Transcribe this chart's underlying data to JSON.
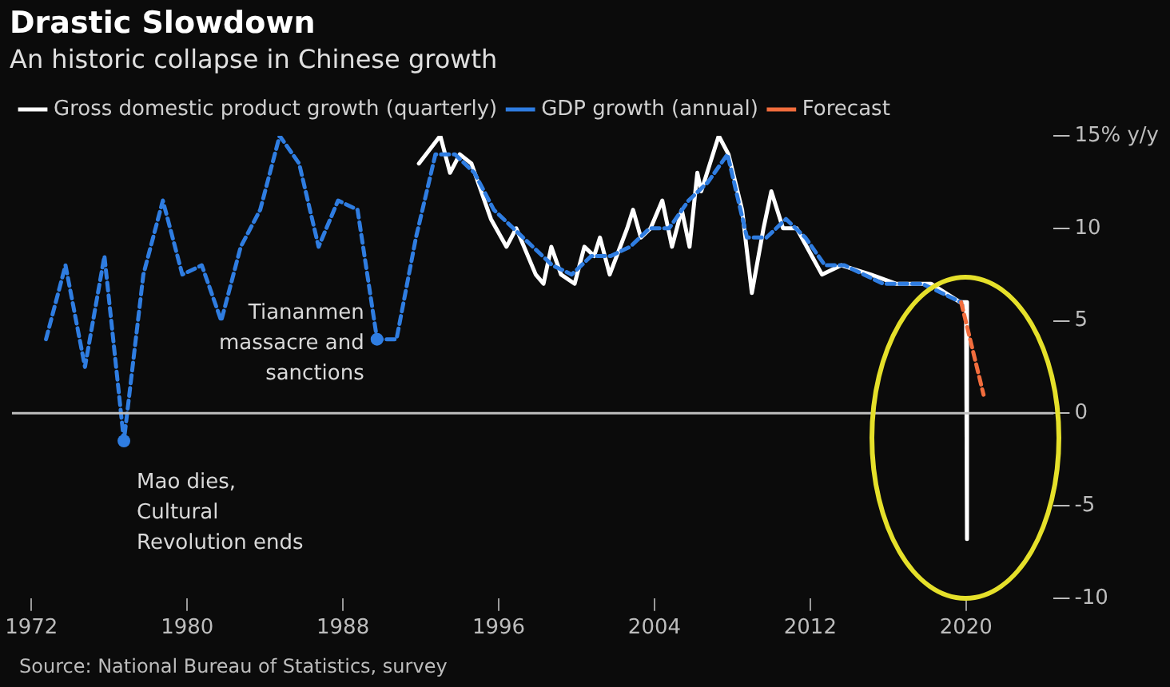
{
  "chart_data": {
    "type": "line",
    "title": "Drastic Slowdown",
    "subtitle": "An historic collapse in Chinese growth",
    "series": [
      {
        "name": "Gross domestic product growth (quarterly)",
        "color": "#ffffff",
        "line_style": "solid",
        "x": [
          1991.9,
          1993,
          1993.5,
          1994,
          1994.6,
          1995.6,
          1996.4,
          1996.9,
          1997.9,
          1998.3,
          1998.7,
          1999.2,
          1999.9,
          2000.4,
          2000.9,
          2001.2,
          2001.7,
          2002.6,
          2002.9,
          2003.3,
          2003.8,
          2004.4,
          2004.9,
          2005.4,
          2005.8,
          2006.2,
          2006.4,
          2007.3,
          2007.8,
          2008.5,
          2009,
          2009.6,
          2010,
          2010.6,
          2011.3,
          2012.6,
          2013.6,
          2015.1,
          2016.4,
          2018.2,
          2019.7,
          2020,
          2020.05
        ],
        "values": [
          13.5,
          15,
          13,
          14,
          13.5,
          10.5,
          9,
          10,
          7.5,
          7,
          9,
          7.5,
          7,
          9,
          8.5,
          9.5,
          7.5,
          10,
          11,
          9.5,
          10,
          11.5,
          9,
          11,
          9,
          13,
          12,
          15,
          14,
          11,
          6.5,
          10,
          12,
          10,
          10,
          7.5,
          8,
          7.5,
          7,
          7,
          6,
          6,
          -6.8
        ]
      },
      {
        "name": "GDP growth (annual)",
        "color": "#2f7de1",
        "line_style": "dashed",
        "x": [
          1972.75,
          1973.75,
          1974.75,
          1975.75,
          1976.75,
          1977.75,
          1978.75,
          1979.75,
          1980.75,
          1981.75,
          1982.75,
          1983.75,
          1984.75,
          1985.75,
          1986.75,
          1987.75,
          1988.75,
          1989.75,
          1990.75,
          1991.75,
          1992.75,
          1993.75,
          1994.75,
          1995.75,
          1996.75,
          1997.75,
          1998.75,
          1999.75,
          2000.75,
          2001.75,
          2002.75,
          2003.75,
          2004.75,
          2005.75,
          2006.75,
          2007.75,
          2008.75,
          2009.75,
          2010.75,
          2011.75,
          2012.75,
          2013.75,
          2014.75,
          2015.75,
          2016.75,
          2017.75,
          2018.75,
          2019.75
        ],
        "values": [
          4,
          8,
          2.5,
          8.5,
          -1.5,
          7.5,
          11.5,
          7.5,
          8,
          5,
          9,
          11,
          15,
          13.5,
          9,
          11.5,
          11,
          4,
          4,
          9.5,
          14,
          14,
          13,
          11,
          10,
          9,
          8,
          7.5,
          8.5,
          8.5,
          9,
          10,
          10,
          11.5,
          12.5,
          14,
          9.5,
          9.5,
          10.5,
          9.5,
          8,
          8,
          7.5,
          7,
          7,
          7,
          6.5,
          6
        ]
      },
      {
        "name": "Forecast",
        "color": "#f26d3d",
        "line_style": "dashed",
        "x": [
          2019.75,
          2020.9
        ],
        "values": [
          6,
          1
        ]
      }
    ],
    "xlim": [
      1971,
      2024.5
    ],
    "xticks": [
      1972,
      1980,
      1988,
      1996,
      2004,
      2012,
      2020
    ],
    "ylim": [
      -10,
      15
    ],
    "yticks": [
      {
        "value": 15,
        "label": "15% y/y"
      },
      10,
      5,
      0,
      -5,
      -10
    ],
    "ref_lines": [
      {
        "axis": "y",
        "value": 0,
        "color": "#bfbfbf"
      }
    ],
    "annotations": [
      {
        "text": "Tiananmen\nmassacre and\nsanctions",
        "x": 1989.75,
        "y": 4
      },
      {
        "text": "Mao dies,\nCultural\nRevolution ends",
        "x": 1976.75,
        "y": -1.5
      },
      "Source: National Bureau of Statistics, survey"
    ],
    "legend": "top",
    "grid": false,
    "marker": "none"
  }
}
